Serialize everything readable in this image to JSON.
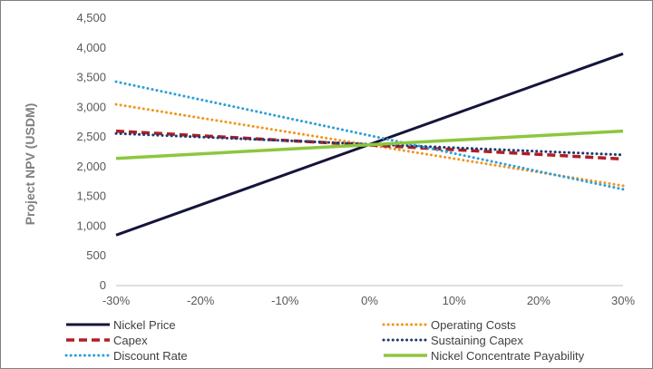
{
  "chart_data": {
    "type": "line",
    "title": "",
    "xlabel": "",
    "ylabel": "Project NPV (USDM)",
    "ylim": [
      0,
      4500
    ],
    "yticks": [
      0,
      500,
      1000,
      1500,
      2000,
      2500,
      3000,
      3500,
      4000,
      4500
    ],
    "ytick_labels": [
      "0",
      "500",
      "1,000",
      "1,500",
      "2,000",
      "2,500",
      "3,000",
      "3,500",
      "4,000",
      "4,500"
    ],
    "x": [
      "-30%",
      "-20%",
      "-10%",
      "0%",
      "10%",
      "20%",
      "30%"
    ],
    "x_values": [
      -30,
      -20,
      -10,
      0,
      10,
      20,
      30
    ],
    "grid": false,
    "legend_position": "bottom",
    "series": [
      {
        "name": "Nickel Price",
        "color": "#14143c",
        "style": "solid",
        "width": 3,
        "points": [
          [
            -30,
            850
          ],
          [
            30,
            3900
          ]
        ]
      },
      {
        "name": "Operating Costs",
        "color": "#f0961e",
        "style": "dotted",
        "width": 3,
        "points": [
          [
            -30,
            3050
          ],
          [
            30,
            1680
          ]
        ]
      },
      {
        "name": "Capex",
        "color": "#b01e23",
        "style": "dashed",
        "width": 3.5,
        "points": [
          [
            -30,
            2600
          ],
          [
            30,
            2130
          ]
        ]
      },
      {
        "name": "Sustaining Capex",
        "color": "#1f3b70",
        "style": "dotted",
        "width": 3,
        "points": [
          [
            -30,
            2560
          ],
          [
            30,
            2200
          ]
        ]
      },
      {
        "name": "Discount Rate",
        "color": "#2e9fd8",
        "style": "dotted",
        "width": 3,
        "points": [
          [
            -30,
            3430
          ],
          [
            30,
            1620
          ]
        ]
      },
      {
        "name": "Nickel Concentrate Payability",
        "color": "#8dc63f",
        "style": "solid",
        "width": 3.5,
        "points": [
          [
            -30,
            2140
          ],
          [
            30,
            2600
          ]
        ]
      }
    ]
  }
}
